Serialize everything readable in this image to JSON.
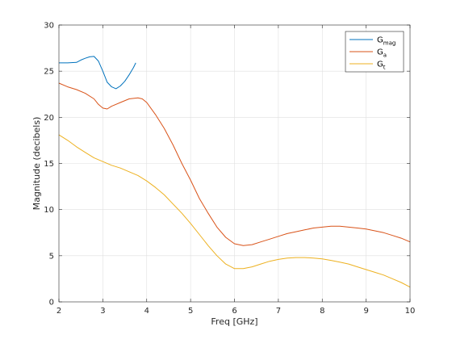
{
  "chart_data": {
    "type": "line",
    "title": "",
    "xlabel": "Freq [GHz]",
    "ylabel": "Magnitude (decibels)",
    "xlim": [
      2,
      10
    ],
    "ylim": [
      0,
      30
    ],
    "xticks": [
      2,
      3,
      4,
      5,
      6,
      7,
      8,
      9,
      10
    ],
    "yticks": [
      0,
      5,
      10,
      15,
      20,
      25,
      30
    ],
    "grid": true,
    "legend_position": "top-right",
    "series": [
      {
        "name": "G",
        "subscript": "mag",
        "color": "#0072BD",
        "x": [
          2.0,
          2.2,
          2.4,
          2.5,
          2.6,
          2.7,
          2.8,
          2.9,
          3.0,
          3.1,
          3.2,
          3.3,
          3.4,
          3.5,
          3.6,
          3.7,
          3.75
        ],
        "y": [
          25.9,
          25.9,
          25.95,
          26.2,
          26.4,
          26.55,
          26.6,
          26.1,
          25.0,
          23.8,
          23.3,
          23.1,
          23.4,
          23.9,
          24.6,
          25.4,
          25.9
        ]
      },
      {
        "name": "G",
        "subscript": "a",
        "color": "#D95319",
        "x": [
          2.0,
          2.2,
          2.4,
          2.6,
          2.8,
          2.9,
          3.0,
          3.1,
          3.2,
          3.4,
          3.6,
          3.8,
          3.9,
          4.0,
          4.2,
          4.4,
          4.6,
          4.8,
          5.0,
          5.2,
          5.4,
          5.6,
          5.8,
          6.0,
          6.2,
          6.4,
          6.6,
          6.8,
          7.0,
          7.2,
          7.4,
          7.6,
          7.8,
          8.0,
          8.2,
          8.4,
          8.6,
          8.8,
          9.0,
          9.2,
          9.4,
          9.6,
          9.8,
          10.0
        ],
        "y": [
          23.7,
          23.3,
          23.0,
          22.6,
          22.0,
          21.4,
          21.0,
          20.9,
          21.2,
          21.6,
          22.0,
          22.1,
          22.0,
          21.6,
          20.3,
          18.8,
          17.0,
          15.0,
          13.2,
          11.2,
          9.6,
          8.1,
          7.0,
          6.3,
          6.1,
          6.2,
          6.5,
          6.8,
          7.1,
          7.4,
          7.6,
          7.8,
          8.0,
          8.1,
          8.2,
          8.2,
          8.1,
          8.0,
          7.9,
          7.7,
          7.5,
          7.2,
          6.9,
          6.5
        ]
      },
      {
        "name": "G",
        "subscript": "t",
        "color": "#EDB120",
        "x": [
          2.0,
          2.2,
          2.4,
          2.6,
          2.8,
          3.0,
          3.2,
          3.4,
          3.6,
          3.8,
          4.0,
          4.2,
          4.4,
          4.6,
          4.8,
          5.0,
          5.2,
          5.4,
          5.6,
          5.8,
          6.0,
          6.2,
          6.4,
          6.6,
          6.8,
          7.0,
          7.2,
          7.4,
          7.6,
          7.8,
          8.0,
          8.2,
          8.4,
          8.6,
          8.8,
          9.0,
          9.2,
          9.4,
          9.6,
          9.8,
          10.0
        ],
        "y": [
          18.1,
          17.5,
          16.8,
          16.2,
          15.6,
          15.2,
          14.8,
          14.5,
          14.1,
          13.7,
          13.1,
          12.4,
          11.6,
          10.6,
          9.6,
          8.5,
          7.3,
          6.1,
          5.0,
          4.1,
          3.6,
          3.6,
          3.8,
          4.1,
          4.4,
          4.6,
          4.75,
          4.8,
          4.8,
          4.75,
          4.65,
          4.5,
          4.3,
          4.1,
          3.8,
          3.5,
          3.2,
          2.9,
          2.5,
          2.1,
          1.6
        ]
      }
    ]
  }
}
